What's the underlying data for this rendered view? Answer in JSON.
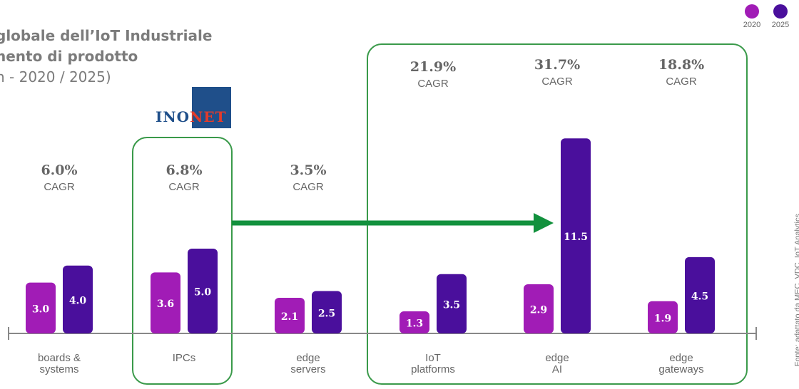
{
  "title": {
    "line1": "globale dell’IoT Industriale",
    "line2": "nento di prodotto",
    "line3": "n - 2020 / 2025)"
  },
  "legend": {
    "items": [
      {
        "label": "2020",
        "color": "#a11cb6"
      },
      {
        "label": "2025",
        "color": "#4a0f9c"
      }
    ]
  },
  "logo": {
    "part1": "INO",
    "part2": "NET"
  },
  "source": "Fonte: adattato da MEC, VDC, IoT Analytics",
  "cagr_label": "CAGR",
  "colors": {
    "c2020": "#a11cb6",
    "c2025": "#4a0f9c",
    "highlight": "#3a9a4a",
    "arrow": "#12913d",
    "axis": "#888888",
    "cagr": "#666666"
  },
  "chart_data": {
    "type": "bar",
    "categories": [
      "boards & systems",
      "IPCs",
      "edge servers",
      "IoT platforms",
      "edge AI",
      "edge gateways"
    ],
    "category_lines": [
      [
        "boards &",
        "systems"
      ],
      [
        "IPCs"
      ],
      [
        "edge",
        "servers"
      ],
      [
        "IoT",
        "platforms"
      ],
      [
        "edge",
        "AI"
      ],
      [
        "edge",
        "gateways"
      ]
    ],
    "series": [
      {
        "name": "2020",
        "values": [
          3.0,
          3.6,
          2.1,
          1.3,
          2.9,
          1.9
        ]
      },
      {
        "name": "2025",
        "values": [
          4.0,
          5.0,
          2.5,
          3.5,
          11.5,
          4.5
        ]
      }
    ],
    "value_labels_2020": [
      "3.0",
      "3.6",
      "2.1",
      "1.3",
      "2.9",
      "1.9"
    ],
    "value_labels_2025": [
      "4.0",
      "5.0",
      "2.5",
      "3.5",
      "11.5",
      "4.5"
    ],
    "cagr": [
      "6.0%",
      "6.8%",
      "3.5%",
      "21.9%",
      "31.7%",
      "18.8%"
    ]
  }
}
